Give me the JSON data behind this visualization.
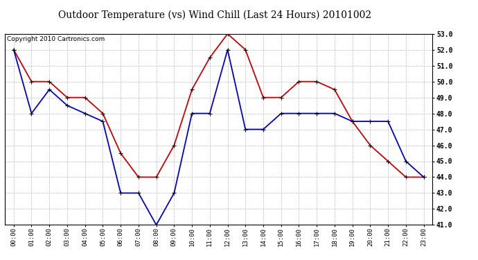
{
  "title": "Outdoor Temperature (vs) Wind Chill (Last 24 Hours) 20101002",
  "copyright": "Copyright 2010 Cartronics.com",
  "x_labels": [
    "00:00",
    "01:00",
    "02:00",
    "03:00",
    "04:00",
    "05:00",
    "06:00",
    "07:00",
    "08:00",
    "09:00",
    "10:00",
    "11:00",
    "12:00",
    "13:00",
    "14:00",
    "15:00",
    "16:00",
    "17:00",
    "18:00",
    "19:00",
    "20:00",
    "21:00",
    "22:00",
    "23:00"
  ],
  "temp_red": [
    52.0,
    50.0,
    50.0,
    49.0,
    49.0,
    48.0,
    45.5,
    44.0,
    44.0,
    46.0,
    49.5,
    51.5,
    53.0,
    52.0,
    49.0,
    49.0,
    50.0,
    50.0,
    49.5,
    47.5,
    46.0,
    45.0,
    44.0,
    44.0
  ],
  "wind_blue": [
    52.0,
    48.0,
    49.5,
    48.5,
    48.0,
    47.5,
    43.0,
    43.0,
    41.0,
    43.0,
    48.0,
    48.0,
    52.0,
    47.0,
    47.0,
    48.0,
    48.0,
    48.0,
    48.0,
    47.5,
    47.5,
    47.5,
    45.0,
    44.0
  ],
  "ylim": [
    41.0,
    53.0
  ],
  "yticks": [
    41.0,
    42.0,
    43.0,
    44.0,
    45.0,
    46.0,
    47.0,
    48.0,
    49.0,
    50.0,
    51.0,
    52.0,
    53.0
  ],
  "red_color": "#cc0000",
  "blue_color": "#0000cc",
  "bg_color": "#ffffff",
  "grid_color": "#bbbbbb",
  "title_fontsize": 10,
  "copyright_fontsize": 6.5
}
